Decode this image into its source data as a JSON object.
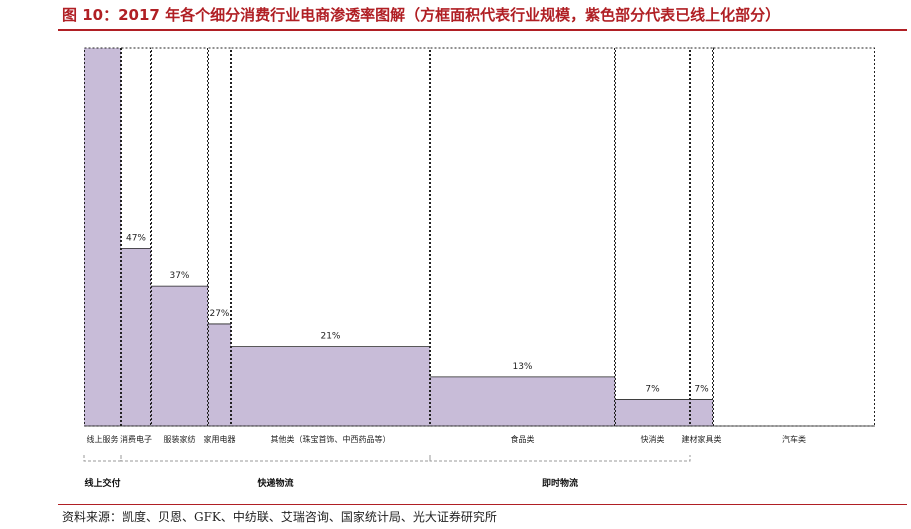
{
  "figure": {
    "title": "图 10：2017 年各个细分消费行业电商渗透率图解（方框面积代表行业规模，紫色部分代表已线上化部分）",
    "source": "资料来源：凯度、贝恩、GFK、中纺联、艾瑞咨询、国家统计局、光大证券研究所"
  },
  "chart_data": {
    "type": "bar",
    "categories": [
      "线上服务",
      "消费电子",
      "服装家纺",
      "家用电器",
      "其他类（珠宝首饰、中西药品等）",
      "食品类",
      "快消类",
      "建材家具类",
      "汽车类"
    ],
    "values": [
      100,
      47,
      37,
      27,
      21,
      13,
      7,
      7,
      0
    ],
    "data_labels": [
      "",
      "47%",
      "37%",
      "27%",
      "21%",
      "13%",
      "7%",
      "7%",
      ""
    ],
    "ylim": [
      0,
      100
    ],
    "groups": [
      {
        "label": "线上交付",
        "members": [
          "线上服务"
        ]
      },
      {
        "label": "快递物流",
        "members": [
          "消费电子",
          "服装家纺",
          "家用电器",
          "其他类（珠宝首饰、中西药品等）"
        ]
      },
      {
        "label": "即时物流",
        "members": [
          "食品类",
          "快消类"
        ]
      }
    ],
    "colors": {
      "fill": "#c8bcd8",
      "border": "#222222",
      "group_bracket": "#999999"
    }
  }
}
